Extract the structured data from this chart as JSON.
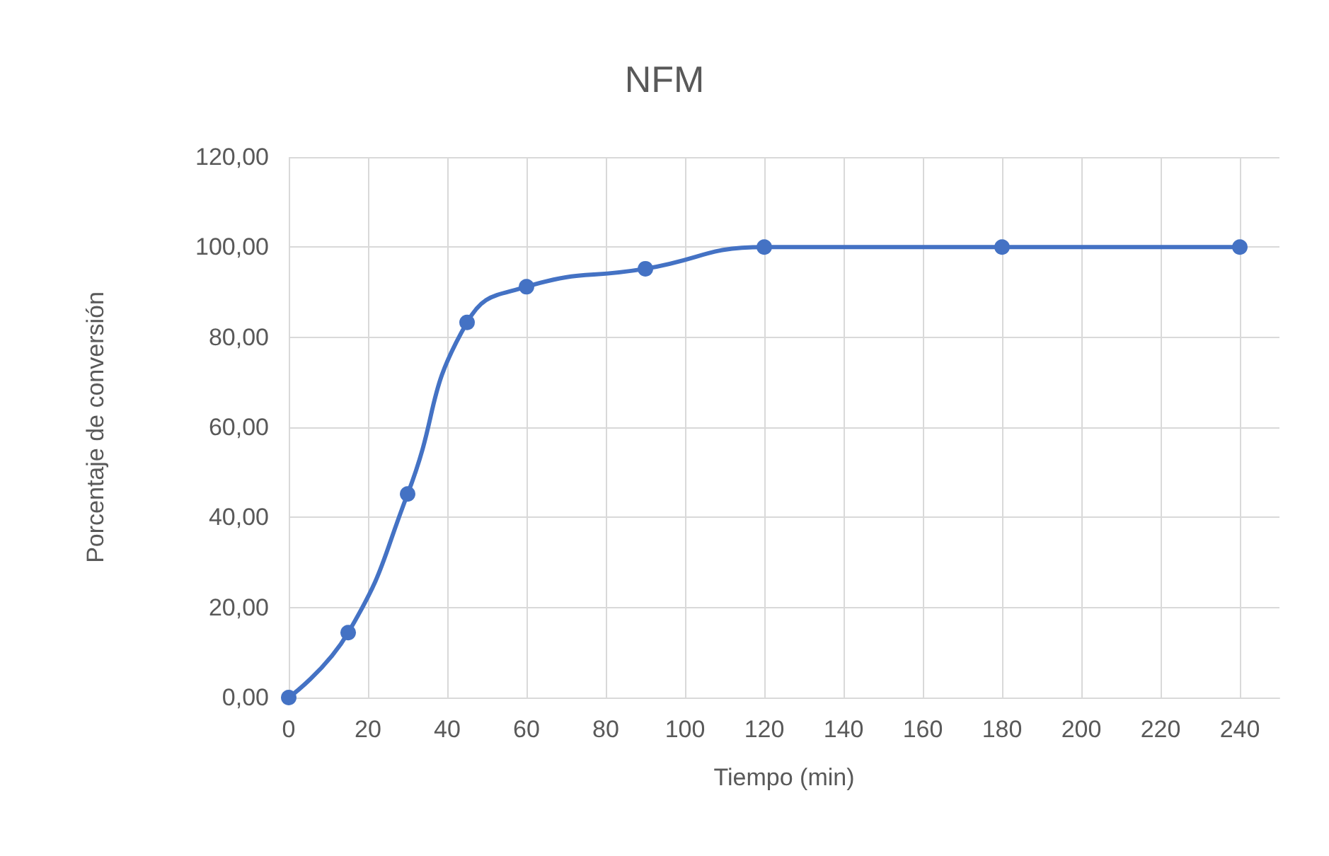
{
  "chart_data": {
    "type": "line",
    "title": "NFM",
    "xlabel": "Tiempo (min)",
    "ylabel": "Porcentaje de conversión",
    "x": [
      0,
      15,
      30,
      45,
      60,
      90,
      120,
      180,
      240
    ],
    "series": [
      {
        "color": "#4472c4",
        "values": [
          0,
          14.4,
          45.2,
          83.3,
          91.2,
          95.2,
          100,
          100,
          100
        ]
      }
    ],
    "xlim": [
      0,
      250
    ],
    "xticks": [
      0,
      20,
      40,
      60,
      80,
      100,
      120,
      140,
      160,
      180,
      200,
      220,
      240
    ],
    "ylim": [
      0,
      120
    ],
    "yticks": [
      {
        "value": 0,
        "label": "0,00"
      },
      {
        "value": 20,
        "label": "20,00"
      },
      {
        "value": 40,
        "label": "40,00"
      },
      {
        "value": 60,
        "label": "60,00"
      },
      {
        "value": 80,
        "label": "80,00"
      },
      {
        "value": 100,
        "label": "100,00"
      },
      {
        "value": 120,
        "label": "120,00"
      }
    ],
    "grid": true,
    "marker": "circle",
    "line_style": "solid"
  }
}
